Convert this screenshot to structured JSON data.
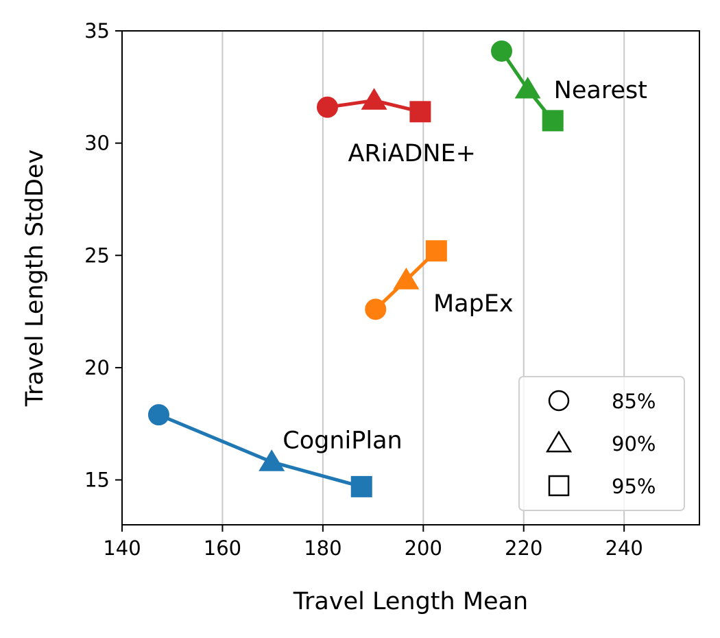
{
  "chart_data": {
    "type": "line",
    "title": "",
    "xlabel": "Travel Length Mean",
    "ylabel": "Travel Length StdDev",
    "xlim": [
      140,
      255
    ],
    "ylim": [
      13,
      35
    ],
    "xticks": [
      140,
      160,
      180,
      200,
      220,
      240
    ],
    "yticks": [
      15,
      20,
      25,
      30,
      35
    ],
    "grid": "vertical",
    "markers": [
      "circle",
      "triangle",
      "square"
    ],
    "legend": {
      "placement": "lower-right",
      "entries": [
        {
          "marker": "circle",
          "label": "85%"
        },
        {
          "marker": "triangle",
          "label": "90%"
        },
        {
          "marker": "square",
          "label": "95%"
        }
      ]
    },
    "series": [
      {
        "name": "CogniPlan",
        "color": "#1f77b4",
        "points": [
          {
            "x": 147.3,
            "y": 17.9
          },
          {
            "x": 169.8,
            "y": 15.8
          },
          {
            "x": 187.7,
            "y": 14.7
          }
        ],
        "label_anchor": {
          "x": 172,
          "y": 16.4
        }
      },
      {
        "name": "MapEx",
        "color": "#ff7f0e",
        "points": [
          {
            "x": 190.5,
            "y": 22.6
          },
          {
            "x": 196.6,
            "y": 23.9
          },
          {
            "x": 202.6,
            "y": 25.2
          }
        ],
        "label_anchor": {
          "x": 202,
          "y": 22.5
        }
      },
      {
        "name": "ARiADNE+",
        "color": "#d62728",
        "points": [
          {
            "x": 180.9,
            "y": 31.6
          },
          {
            "x": 190.2,
            "y": 31.9
          },
          {
            "x": 199.4,
            "y": 31.4
          }
        ],
        "label_anchor": {
          "x": 185,
          "y": 29.2
        }
      },
      {
        "name": "Nearest",
        "color": "#2ca02c",
        "points": [
          {
            "x": 215.6,
            "y": 34.1
          },
          {
            "x": 220.8,
            "y": 32.4
          },
          {
            "x": 225.8,
            "y": 31.0
          }
        ],
        "label_anchor": {
          "x": 226,
          "y": 32.0
        }
      }
    ]
  }
}
